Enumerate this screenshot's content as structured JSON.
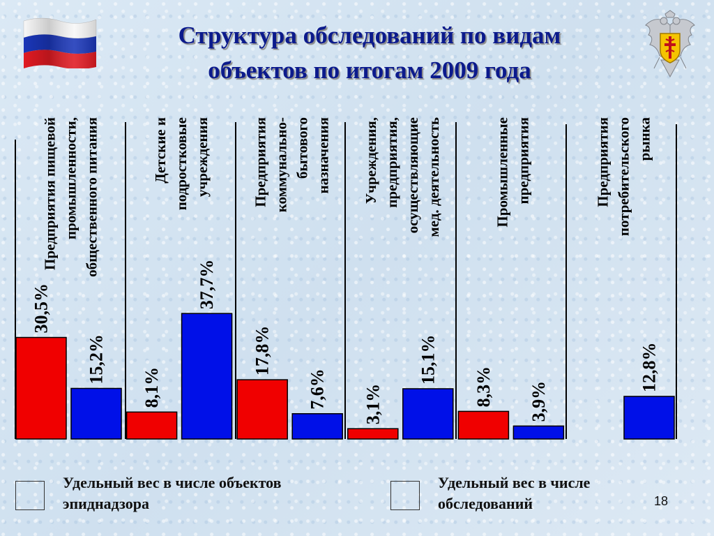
{
  "title": {
    "line1": "Структура обследований по видам",
    "line2": "объектов по итогам 2009 года"
  },
  "page_number": "18",
  "colors": {
    "red": "#f00000",
    "blue": "#0010e8"
  },
  "icons": {
    "flag": "russian-flag-icon",
    "emblem": "rospotrebnadzor-emblem-icon"
  },
  "chart_data": {
    "type": "bar",
    "ylim": [
      0,
      40
    ],
    "grid": false,
    "legend_placement": "bottom",
    "categories": [
      [
        "Предприятия пищевой",
        "промышленности,",
        "общественного питания"
      ],
      [
        "Детские и",
        "подростковые",
        "учреждения"
      ],
      [
        "Предприятия",
        "коммунально-",
        "бытового",
        "назначения"
      ],
      [
        "Учреждения,",
        "предприятия,",
        "осуществляющие",
        "мед. деятельность"
      ],
      [
        "Промышленные",
        "предприятия"
      ],
      [
        "Предприятия",
        "потребительского",
        "рынка"
      ]
    ],
    "series": [
      {
        "name": "Удельный вес в числе объектов эпиднадзора",
        "legend_lines": [
          "Удельный вес в числе объектов",
          "эпиднадзора"
        ],
        "color": "#f00000",
        "values": [
          30.5,
          8.1,
          17.8,
          3.1,
          8.3,
          null
        ],
        "labels": [
          "30,5%",
          "8,1%",
          "17,8%",
          "3,1%",
          "8,3%",
          ""
        ]
      },
      {
        "name": "Удельный вес в числе обследований",
        "legend_lines": [
          "Удельный вес в числе",
          "обследований"
        ],
        "color": "#0010e8",
        "values": [
          15.2,
          37.7,
          7.6,
          15.1,
          3.9,
          12.8
        ],
        "labels": [
          "15,2%",
          "37,7%",
          "7,6%",
          "15,1%",
          "3,9%",
          "12,8%"
        ]
      }
    ]
  }
}
